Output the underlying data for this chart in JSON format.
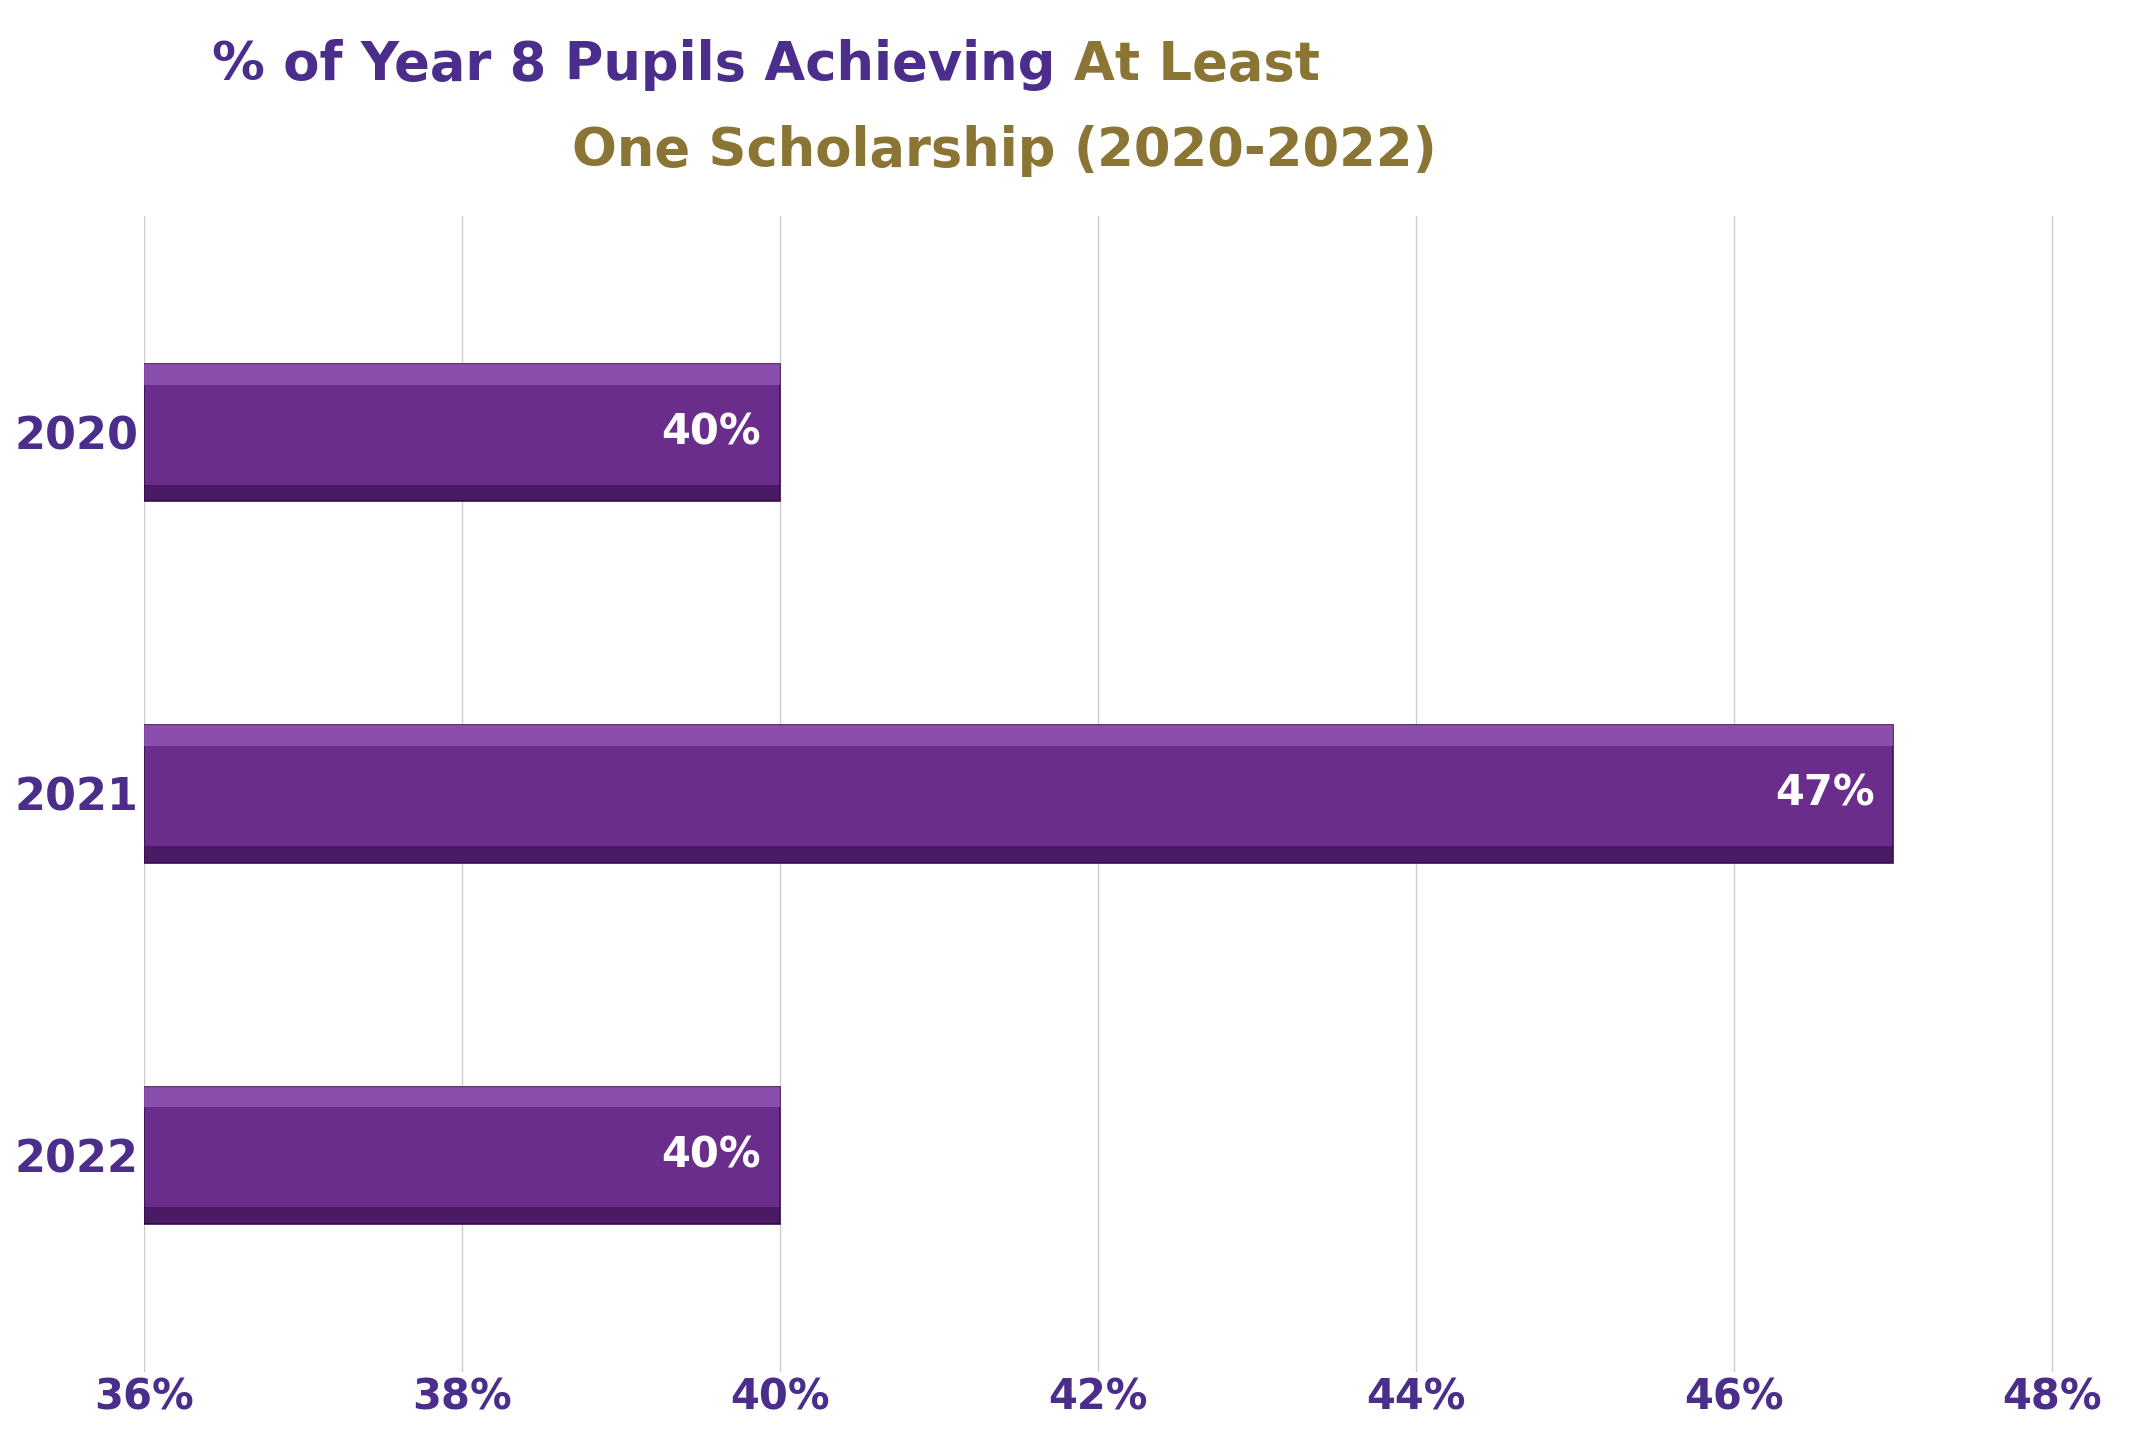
{
  "categories": [
    "2022",
    "2021",
    "2020"
  ],
  "values": [
    40,
    47,
    40
  ],
  "bar_color": "#6B2D8B",
  "bar_color_top": "#8B4DAB",
  "bar_color_bottom": "#3A1050",
  "bar_edge_color": "#3A1050",
  "text_color_white": "#FFFFFF",
  "title_line1_purple": "% of Year 8 Pupils Achieving ",
  "title_line1_golden": "At Least",
  "title_line2_golden": "One Scholarship ",
  "title_line2_bold": "(2020-2022)",
  "title_color_main": "#4B2D8B",
  "title_color_highlight": "#8B7535",
  "xlim_min": 36,
  "xlim_max": 48.5,
  "xtick_values": [
    36,
    38,
    40,
    42,
    44,
    46,
    48
  ],
  "xtick_labels": [
    "36%",
    "38%",
    "40%",
    "42%",
    "44%",
    "46%",
    "48%"
  ],
  "ytick_color": "#4B2D8B",
  "xtick_color": "#4B2D8B",
  "grid_color": "#CCCCCC",
  "background_color": "#FFFFFF",
  "bar_labels": [
    "40%",
    "47%",
    "40%"
  ],
  "label_fontsize": 30,
  "ytick_fontsize": 32,
  "xtick_fontsize": 30,
  "title_fontsize": 38,
  "bar_height": 0.38
}
